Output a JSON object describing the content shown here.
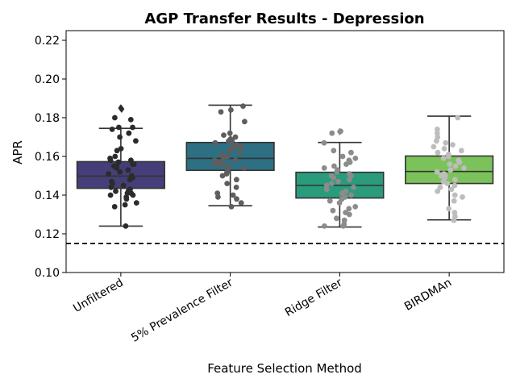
{
  "chart_data": {
    "type": "box",
    "title": "AGP Transfer Results - Depression",
    "xlabel": "Feature Selection Method",
    "ylabel": "APR",
    "ylim": [
      0.1,
      0.225
    ],
    "yticks": [
      "0.10",
      "0.12",
      "0.14",
      "0.16",
      "0.18",
      "0.20",
      "0.22"
    ],
    "ytick_values": [
      0.1,
      0.12,
      0.14,
      0.16,
      0.18,
      0.2,
      0.22
    ],
    "baseline": 0.115,
    "baseline_style": "dashed",
    "categories": [
      "Unfiltered",
      "5% Prevalence Filter",
      "Ridge Filter",
      "BIRDMAn"
    ],
    "boxes": [
      {
        "name": "Unfiltered",
        "whisker_low": 0.124,
        "q1": 0.1435,
        "median": 0.1498,
        "q3": 0.1573,
        "whisker_high": 0.1745,
        "outliers": [
          0.185,
          0.1845
        ],
        "box_color": "#443f78",
        "point_color": "#2b2b2b",
        "points": [
          0.124,
          0.134,
          0.135,
          0.136,
          0.138,
          0.139,
          0.14,
          0.14,
          0.141,
          0.141,
          0.142,
          0.142,
          0.143,
          0.144,
          0.145,
          0.146,
          0.147,
          0.148,
          0.149,
          0.15,
          0.151,
          0.152,
          0.153,
          0.154,
          0.155,
          0.155,
          0.156,
          0.156,
          0.157,
          0.157,
          0.158,
          0.158,
          0.159,
          0.16,
          0.163,
          0.164,
          0.168,
          0.17,
          0.172,
          0.174,
          0.175,
          0.175,
          0.179,
          0.18
        ]
      },
      {
        "name": "5% Prevalence Filter",
        "whisker_low": 0.1345,
        "q1": 0.1528,
        "median": 0.159,
        "q3": 0.1672,
        "whisker_high": 0.1865,
        "outliers": [],
        "box_color": "#2d6f83",
        "point_color": "#5e5e5e",
        "points": [
          0.134,
          0.136,
          0.138,
          0.139,
          0.14,
          0.141,
          0.144,
          0.146,
          0.148,
          0.15,
          0.151,
          0.152,
          0.153,
          0.154,
          0.155,
          0.156,
          0.156,
          0.157,
          0.158,
          0.158,
          0.159,
          0.16,
          0.16,
          0.161,
          0.162,
          0.163,
          0.164,
          0.165,
          0.165,
          0.166,
          0.167,
          0.168,
          0.168,
          0.169,
          0.17,
          0.171,
          0.172,
          0.178,
          0.183,
          0.184,
          0.186
        ]
      },
      {
        "name": "Ridge Filter",
        "whisker_low": 0.1235,
        "q1": 0.1385,
        "median": 0.145,
        "q3": 0.1518,
        "whisker_high": 0.1672,
        "outliers": [
          0.1728
        ],
        "box_color": "#2a9c7d",
        "point_color": "#8c8c8c",
        "points": [
          0.124,
          0.124,
          0.125,
          0.127,
          0.128,
          0.13,
          0.131,
          0.132,
          0.133,
          0.134,
          0.136,
          0.137,
          0.138,
          0.139,
          0.14,
          0.141,
          0.142,
          0.143,
          0.144,
          0.145,
          0.146,
          0.147,
          0.148,
          0.149,
          0.15,
          0.15,
          0.151,
          0.152,
          0.153,
          0.154,
          0.155,
          0.156,
          0.157,
          0.158,
          0.159,
          0.16,
          0.162,
          0.163,
          0.167,
          0.172,
          0.173
        ]
      },
      {
        "name": "BIRDMAn",
        "whisker_low": 0.1272,
        "q1": 0.146,
        "median": 0.1522,
        "q3": 0.1602,
        "whisker_high": 0.1808,
        "outliers": [],
        "box_color": "#7cc25a",
        "point_color": "#bdbdbd",
        "points": [
          0.127,
          0.129,
          0.131,
          0.133,
          0.137,
          0.139,
          0.14,
          0.142,
          0.143,
          0.144,
          0.145,
          0.146,
          0.147,
          0.148,
          0.149,
          0.15,
          0.15,
          0.151,
          0.152,
          0.153,
          0.154,
          0.155,
          0.156,
          0.157,
          0.158,
          0.159,
          0.16,
          0.161,
          0.162,
          0.163,
          0.164,
          0.165,
          0.166,
          0.167,
          0.168,
          0.17,
          0.172,
          0.174,
          0.18
        ]
      }
    ],
    "grid": false,
    "legend": "none"
  }
}
